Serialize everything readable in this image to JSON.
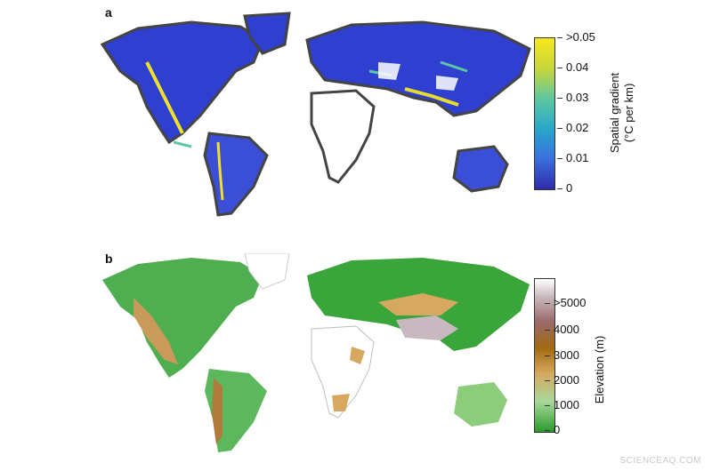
{
  "panel_a": {
    "label": "a",
    "colorbar": {
      "title_line1": "Spatial gradient",
      "title_line2": "(°C per km)",
      "ticks": [
        ">0.05",
        "0.04",
        "0.03",
        "0.02",
        "0.01",
        "0"
      ],
      "colors": [
        "#f7e81e",
        "#c8d63a",
        "#5ec7a0",
        "#27a8c9",
        "#3a6fe0",
        "#2f2aa8"
      ]
    }
  },
  "panel_b": {
    "label": "b",
    "colorbar": {
      "title": "Elevation (m)",
      "ticks": [
        ">5000",
        "4000",
        "3000",
        "2000",
        "1000",
        "0"
      ],
      "colors": [
        "#ffffff",
        "#9a6a6a",
        "#a06a10",
        "#d7a860",
        "#a8d89a",
        "#2b9a2b"
      ]
    }
  },
  "watermark": "SCIENCEAQ.COM"
}
